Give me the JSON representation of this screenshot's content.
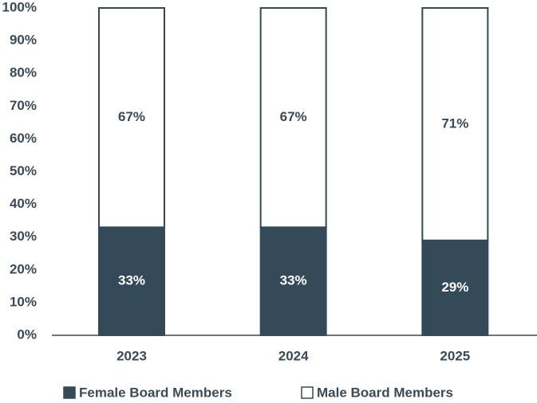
{
  "chart_data": {
    "type": "stacked_bar",
    "categories": [
      "2023",
      "2024",
      "2025"
    ],
    "series": [
      {
        "name": "Female Board Members",
        "color": "#344a59",
        "values": [
          33,
          33,
          29
        ],
        "value_labels": [
          "33%",
          "33%",
          "29%"
        ]
      },
      {
        "name": "Male Board Members",
        "color": "#ffffff",
        "values": [
          67,
          67,
          71
        ],
        "value_labels": [
          "67%",
          "67%",
          "71%"
        ]
      }
    ],
    "ylim": [
      0,
      100
    ],
    "yticks": [
      {
        "value": 0,
        "label": "0%"
      },
      {
        "value": 10,
        "label": "10%"
      },
      {
        "value": 20,
        "label": "20%"
      },
      {
        "value": 30,
        "label": "30%"
      },
      {
        "value": 40,
        "label": "40%"
      },
      {
        "value": 50,
        "label": "50%"
      },
      {
        "value": 60,
        "label": "60%"
      },
      {
        "value": 70,
        "label": "70%"
      },
      {
        "value": 80,
        "label": "80%"
      },
      {
        "value": 90,
        "label": "90%"
      },
      {
        "value": 100,
        "label": "100%"
      }
    ],
    "grid": false,
    "legend": "bottom"
  }
}
